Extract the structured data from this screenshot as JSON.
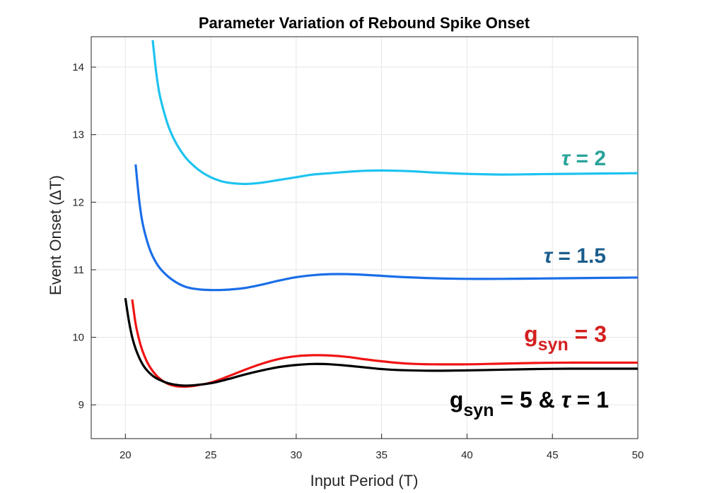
{
  "chart_data": {
    "type": "line",
    "title": "Parameter Variation of Rebound Spike Onset",
    "xlabel": "Input Period (T)",
    "ylabel": "Event Onset (ΔT)",
    "xlim": [
      18,
      50
    ],
    "ylim": [
      8.5,
      14.45
    ],
    "grid": true,
    "legend": "none",
    "xticks": [
      20,
      25,
      30,
      35,
      40,
      45,
      50
    ],
    "yticks": [
      9,
      10,
      11,
      12,
      13,
      14
    ],
    "series": [
      {
        "color": "#1ec3f0",
        "x": [
          21.6,
          21.8,
          22,
          22.3,
          22.6,
          23,
          23.5,
          24,
          24.5,
          25,
          25.5,
          26,
          27,
          28,
          29,
          30,
          31,
          32,
          33,
          34,
          35,
          36,
          37,
          38,
          40,
          42,
          44,
          46,
          48,
          50
        ],
        "y": [
          14.4,
          13.93,
          13.6,
          13.3,
          13.07,
          12.86,
          12.67,
          12.54,
          12.44,
          12.37,
          12.32,
          12.29,
          12.27,
          12.29,
          12.33,
          12.37,
          12.41,
          12.43,
          12.45,
          12.465,
          12.47,
          12.465,
          12.455,
          12.44,
          12.42,
          12.41,
          12.415,
          12.42,
          12.425,
          12.43
        ]
      },
      {
        "color": "#1a6ee8",
        "x": [
          20.6,
          20.8,
          21,
          21.3,
          21.6,
          22,
          22.5,
          23,
          23.5,
          24,
          24.5,
          25,
          25.5,
          26,
          27,
          28,
          29,
          30,
          31,
          32,
          33,
          34,
          35,
          36,
          38,
          40,
          42,
          44,
          46,
          48,
          50
        ],
        "y": [
          12.56,
          12.05,
          11.7,
          11.4,
          11.2,
          11.03,
          10.9,
          10.81,
          10.75,
          10.72,
          10.705,
          10.7,
          10.7,
          10.705,
          10.73,
          10.78,
          10.84,
          10.89,
          10.92,
          10.935,
          10.935,
          10.925,
          10.91,
          10.895,
          10.875,
          10.865,
          10.865,
          10.87,
          10.875,
          10.88,
          10.885
        ]
      },
      {
        "color": "#f01414",
        "x": [
          20.4,
          20.6,
          20.8,
          21,
          21.3,
          21.6,
          22,
          22.5,
          23,
          23.5,
          24,
          25,
          26,
          27,
          28,
          29,
          30,
          31,
          32,
          33,
          34,
          35,
          36,
          37,
          38,
          40,
          42,
          44,
          46,
          48,
          50
        ],
        "y": [
          10.56,
          10.2,
          9.97,
          9.8,
          9.62,
          9.5,
          9.39,
          9.31,
          9.275,
          9.27,
          9.28,
          9.33,
          9.42,
          9.52,
          9.61,
          9.68,
          9.72,
          9.735,
          9.73,
          9.71,
          9.675,
          9.645,
          9.62,
          9.605,
          9.6,
          9.6,
          9.61,
          9.62,
          9.625,
          9.625,
          9.625
        ]
      },
      {
        "color": "#000000",
        "x": [
          20,
          20.2,
          20.4,
          20.6,
          20.9,
          21.2,
          21.6,
          22,
          22.5,
          23,
          23.5,
          24,
          25,
          26,
          27,
          28,
          29,
          30,
          31,
          32,
          33,
          34,
          35,
          36,
          38,
          40,
          42,
          44,
          46,
          48,
          50
        ],
        "y": [
          10.58,
          10.25,
          10.0,
          9.83,
          9.65,
          9.53,
          9.43,
          9.37,
          9.32,
          9.295,
          9.285,
          9.29,
          9.32,
          9.38,
          9.45,
          9.51,
          9.56,
          9.59,
          9.605,
          9.6,
          9.58,
          9.555,
          9.53,
          9.515,
          9.505,
          9.51,
          9.52,
          9.53,
          9.535,
          9.535,
          9.535
        ]
      }
    ],
    "annotations": [
      {
        "color": "#2aa39a",
        "parts": [
          {
            "t": "τ",
            "italic": true
          },
          {
            "t": " = 2"
          }
        ]
      },
      {
        "color": "#1a5d8c",
        "parts": [
          {
            "t": "τ",
            "italic": true
          },
          {
            "t": " = 1.5"
          }
        ]
      },
      {
        "color": "#d42020",
        "parts": [
          {
            "t": "g"
          },
          {
            "t": "syn",
            "sub": true
          },
          {
            "t": " = 3"
          }
        ]
      },
      {
        "color": "#000000",
        "parts": [
          {
            "t": "g"
          },
          {
            "t": "syn",
            "sub": true
          },
          {
            "t": " = 5 & "
          },
          {
            "t": "τ",
            "italic": true
          },
          {
            "t": " = 1"
          }
        ]
      }
    ]
  }
}
